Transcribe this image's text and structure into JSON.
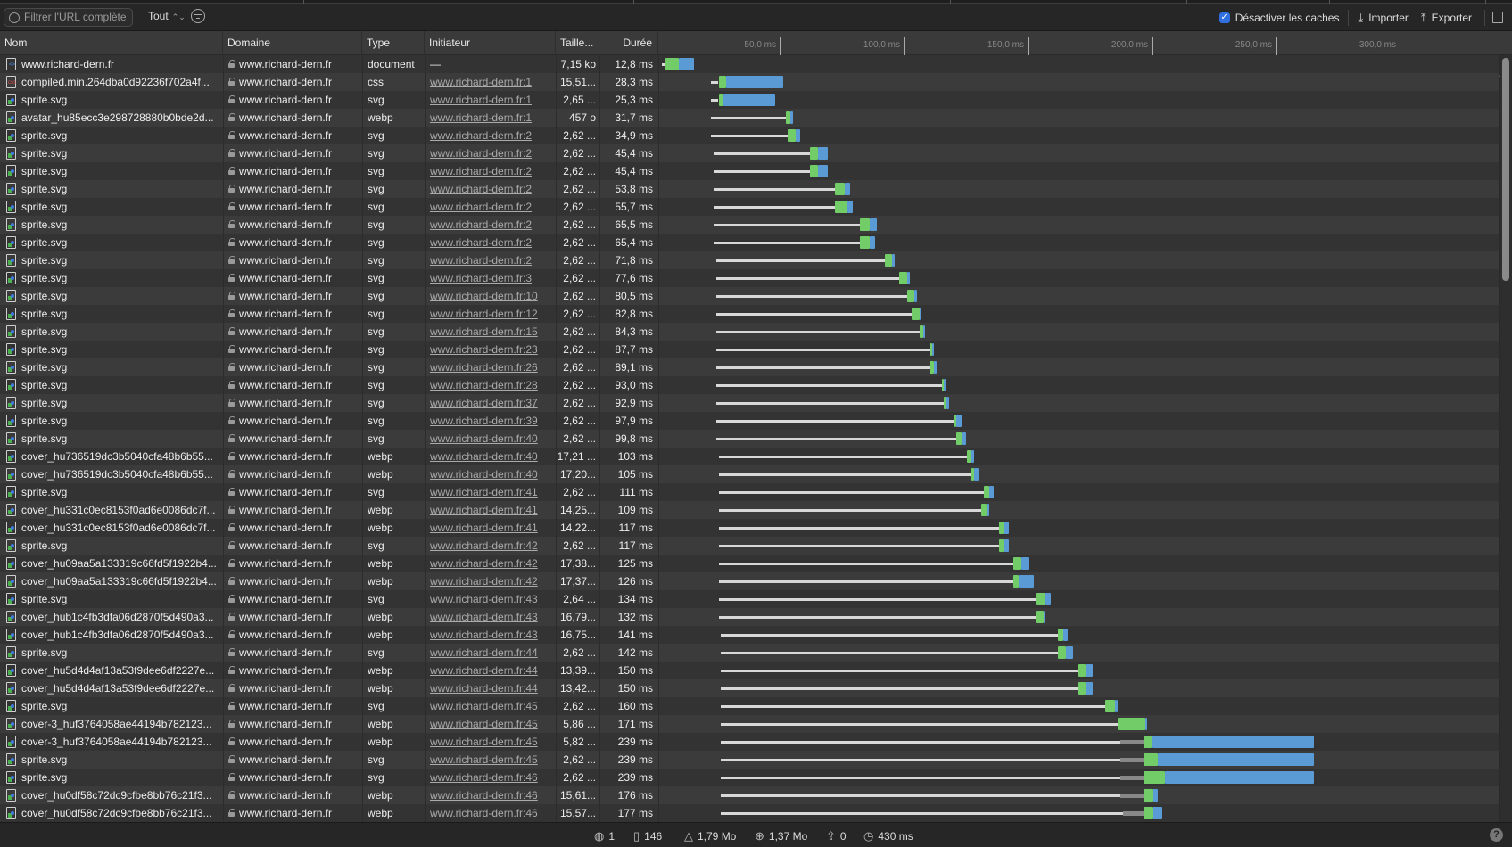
{
  "toolbar": {
    "filter_placeholder": "Filtrer l'URL complète",
    "type_filter": "Tout",
    "disable_cache_label": "Désactiver les caches",
    "disable_cache_checked": true,
    "import_label": "Importer",
    "export_label": "Exporter"
  },
  "columns": {
    "name": "Nom",
    "domain": "Domaine",
    "type": "Type",
    "initiator": "Initiateur",
    "size": "Taille...",
    "duration": "Durée"
  },
  "timeline": {
    "ticks": [
      "50,0 ms",
      "100,0 ms",
      "150,0 ms",
      "200,0 ms",
      "250,0 ms",
      "300,0 ms"
    ],
    "tick_values_ms": [
      50,
      100,
      150,
      200,
      250,
      300
    ],
    "colors": {
      "waiting": "#d8d8d8",
      "stalled": "#888888",
      "request": "#72cc68",
      "response": "#5a9bd6"
    }
  },
  "rows": [
    {
      "name": "www.richard-dern.fr",
      "icon": "document",
      "domain": "www.richard-dern.fr",
      "type": "document",
      "initiator": "—",
      "size": "7,15 ko",
      "duration": "12,8 ms",
      "timing": [
        2,
        null,
        3.5,
        9,
        15
      ]
    },
    {
      "name": "compiled.min.264dba0d92236f702a4f...",
      "icon": "css",
      "domain": "www.richard-dern.fr",
      "type": "css",
      "initiator": "www.richard-dern.fr:1",
      "size": "15,51...",
      "duration": "28,3 ms",
      "timing": [
        22,
        null,
        25,
        28,
        51
      ]
    },
    {
      "name": "sprite.svg",
      "icon": "image",
      "domain": "www.richard-dern.fr",
      "type": "svg",
      "initiator": "www.richard-dern.fr:1",
      "size": "2,65 ...",
      "duration": "25,3 ms",
      "timing": [
        22,
        null,
        25,
        27,
        48
      ]
    },
    {
      "name": "avatar_hu85ecc3e298728880b0bde2d...",
      "icon": "image",
      "domain": "www.richard-dern.fr",
      "type": "webp",
      "initiator": "www.richard-dern.fr:1",
      "size": "457 o",
      "duration": "31,7 ms",
      "timing": [
        22,
        null,
        52,
        54,
        55
      ]
    },
    {
      "name": "sprite.svg",
      "icon": "image",
      "domain": "www.richard-dern.fr",
      "type": "svg",
      "initiator": "www.richard-dern.fr:2",
      "size": "2,62 ...",
      "duration": "34,9 ms",
      "timing": [
        22,
        null,
        53,
        56,
        58
      ]
    },
    {
      "name": "sprite.svg",
      "icon": "image",
      "domain": "www.richard-dern.fr",
      "type": "svg",
      "initiator": "www.richard-dern.fr:2",
      "size": "2,62 ...",
      "duration": "45,4 ms",
      "timing": [
        23,
        null,
        62,
        65,
        69
      ]
    },
    {
      "name": "sprite.svg",
      "icon": "image",
      "domain": "www.richard-dern.fr",
      "type": "svg",
      "initiator": "www.richard-dern.fr:2",
      "size": "2,62 ...",
      "duration": "45,4 ms",
      "timing": [
        23,
        null,
        62,
        65,
        69
      ]
    },
    {
      "name": "sprite.svg",
      "icon": "image",
      "domain": "www.richard-dern.fr",
      "type": "svg",
      "initiator": "www.richard-dern.fr:2",
      "size": "2,62 ...",
      "duration": "53,8 ms",
      "timing": [
        23,
        null,
        72,
        76,
        78
      ]
    },
    {
      "name": "sprite.svg",
      "icon": "image",
      "domain": "www.richard-dern.fr",
      "type": "svg",
      "initiator": "www.richard-dern.fr:2",
      "size": "2,62 ...",
      "duration": "55,7 ms",
      "timing": [
        23,
        null,
        72,
        77,
        79
      ]
    },
    {
      "name": "sprite.svg",
      "icon": "image",
      "domain": "www.richard-dern.fr",
      "type": "svg",
      "initiator": "www.richard-dern.fr:2",
      "size": "2,62 ...",
      "duration": "65,5 ms",
      "timing": [
        23,
        null,
        82,
        86,
        89
      ]
    },
    {
      "name": "sprite.svg",
      "icon": "image",
      "domain": "www.richard-dern.fr",
      "type": "svg",
      "initiator": "www.richard-dern.fr:2",
      "size": "2,62 ...",
      "duration": "65,4 ms",
      "timing": [
        23,
        null,
        82,
        86,
        88
      ]
    },
    {
      "name": "sprite.svg",
      "icon": "image",
      "domain": "www.richard-dern.fr",
      "type": "svg",
      "initiator": "www.richard-dern.fr:2",
      "size": "2,62 ...",
      "duration": "71,8 ms",
      "timing": [
        24,
        null,
        92,
        95,
        96
      ]
    },
    {
      "name": "sprite.svg",
      "icon": "image",
      "domain": "www.richard-dern.fr",
      "type": "svg",
      "initiator": "www.richard-dern.fr:3",
      "size": "2,62 ...",
      "duration": "77,6 ms",
      "timing": [
        24,
        null,
        98,
        101,
        102
      ]
    },
    {
      "name": "sprite.svg",
      "icon": "image",
      "domain": "www.richard-dern.fr",
      "type": "svg",
      "initiator": "www.richard-dern.fr:10",
      "size": "2,62 ...",
      "duration": "80,5 ms",
      "timing": [
        24,
        null,
        101,
        104,
        105
      ]
    },
    {
      "name": "sprite.svg",
      "icon": "image",
      "domain": "www.richard-dern.fr",
      "type": "svg",
      "initiator": "www.richard-dern.fr:12",
      "size": "2,62 ...",
      "duration": "82,8 ms",
      "timing": [
        24,
        null,
        103,
        106,
        107
      ]
    },
    {
      "name": "sprite.svg",
      "icon": "image",
      "domain": "www.richard-dern.fr",
      "type": "svg",
      "initiator": "www.richard-dern.fr:15",
      "size": "2,62 ...",
      "duration": "84,3 ms",
      "timing": [
        24,
        null,
        106,
        107.5,
        108
      ]
    },
    {
      "name": "sprite.svg",
      "icon": "image",
      "domain": "www.richard-dern.fr",
      "type": "svg",
      "initiator": "www.richard-dern.fr:23",
      "size": "2,62 ...",
      "duration": "87,7 ms",
      "timing": [
        24,
        null,
        110,
        111,
        112
      ]
    },
    {
      "name": "sprite.svg",
      "icon": "image",
      "domain": "www.richard-dern.fr",
      "type": "svg",
      "initiator": "www.richard-dern.fr:26",
      "size": "2,62 ...",
      "duration": "89,1 ms",
      "timing": [
        24,
        null,
        110,
        112,
        113
      ]
    },
    {
      "name": "sprite.svg",
      "icon": "image",
      "domain": "www.richard-dern.fr",
      "type": "svg",
      "initiator": "www.richard-dern.fr:28",
      "size": "2,62 ...",
      "duration": "93,0 ms",
      "timing": [
        24,
        null,
        115,
        116,
        117
      ]
    },
    {
      "name": "sprite.svg",
      "icon": "image",
      "domain": "www.richard-dern.fr",
      "type": "svg",
      "initiator": "www.richard-dern.fr:37",
      "size": "2,62 ...",
      "duration": "92,9 ms",
      "timing": [
        24,
        null,
        116,
        117,
        118
      ]
    },
    {
      "name": "sprite.svg",
      "icon": "image",
      "domain": "www.richard-dern.fr",
      "type": "svg",
      "initiator": "www.richard-dern.fr:39",
      "size": "2,62 ...",
      "duration": "97,9 ms",
      "timing": [
        24,
        null,
        120,
        121,
        123
      ]
    },
    {
      "name": "sprite.svg",
      "icon": "image",
      "domain": "www.richard-dern.fr",
      "type": "svg",
      "initiator": "www.richard-dern.fr:40",
      "size": "2,62 ...",
      "duration": "99,8 ms",
      "timing": [
        24,
        null,
        121,
        123,
        125
      ]
    },
    {
      "name": "cover_hu736519dc3b5040cfa48b6b55...",
      "icon": "image",
      "domain": "www.richard-dern.fr",
      "type": "webp",
      "initiator": "www.richard-dern.fr:40",
      "size": "17,21 ...",
      "duration": "103 ms",
      "timing": [
        25,
        null,
        125,
        127,
        128
      ]
    },
    {
      "name": "cover_hu736519dc3b5040cfa48b6b55...",
      "icon": "image",
      "domain": "www.richard-dern.fr",
      "type": "webp",
      "initiator": "www.richard-dern.fr:40",
      "size": "17,20...",
      "duration": "105 ms",
      "timing": [
        25,
        null,
        127,
        128,
        130
      ]
    },
    {
      "name": "sprite.svg",
      "icon": "image",
      "domain": "www.richard-dern.fr",
      "type": "svg",
      "initiator": "www.richard-dern.fr:41",
      "size": "2,62 ...",
      "duration": "111 ms",
      "timing": [
        25,
        null,
        132,
        134,
        136
      ]
    },
    {
      "name": "cover_hu331c0ec8153f0ad6e0086dc7f...",
      "icon": "image",
      "domain": "www.richard-dern.fr",
      "type": "webp",
      "initiator": "www.richard-dern.fr:41",
      "size": "14,25...",
      "duration": "109 ms",
      "timing": [
        25,
        null,
        131,
        133,
        134
      ]
    },
    {
      "name": "cover_hu331c0ec8153f0ad6e0086dc7f...",
      "icon": "image",
      "domain": "www.richard-dern.fr",
      "type": "webp",
      "initiator": "www.richard-dern.fr:41",
      "size": "14,22...",
      "duration": "117 ms",
      "timing": [
        25,
        null,
        138,
        140,
        142
      ]
    },
    {
      "name": "sprite.svg",
      "icon": "image",
      "domain": "www.richard-dern.fr",
      "type": "svg",
      "initiator": "www.richard-dern.fr:42",
      "size": "2,62 ...",
      "duration": "117 ms",
      "timing": [
        25,
        null,
        138,
        140,
        142
      ]
    },
    {
      "name": "cover_hu09aa5a133319c66fd5f1922b4...",
      "icon": "image",
      "domain": "www.richard-dern.fr",
      "type": "webp",
      "initiator": "www.richard-dern.fr:42",
      "size": "17,38...",
      "duration": "125 ms",
      "timing": [
        25,
        null,
        144,
        147,
        150
      ]
    },
    {
      "name": "cover_hu09aa5a133319c66fd5f1922b4...",
      "icon": "image",
      "domain": "www.richard-dern.fr",
      "type": "webp",
      "initiator": "www.richard-dern.fr:42",
      "size": "17,37...",
      "duration": "126 ms",
      "timing": [
        25,
        null,
        144,
        146,
        152
      ]
    },
    {
      "name": "sprite.svg",
      "icon": "image",
      "domain": "www.richard-dern.fr",
      "type": "svg",
      "initiator": "www.richard-dern.fr:43",
      "size": "2,64 ...",
      "duration": "134 ms",
      "timing": [
        25,
        null,
        153,
        157,
        159
      ]
    },
    {
      "name": "cover_hub1c4fb3dfa06d2870f5d490a3...",
      "icon": "image",
      "domain": "www.richard-dern.fr",
      "type": "webp",
      "initiator": "www.richard-dern.fr:43",
      "size": "16,79...",
      "duration": "132 ms",
      "timing": [
        25,
        null,
        153,
        156,
        157
      ]
    },
    {
      "name": "cover_hub1c4fb3dfa06d2870f5d490a3...",
      "icon": "image",
      "domain": "www.richard-dern.fr",
      "type": "webp",
      "initiator": "www.richard-dern.fr:43",
      "size": "16,75...",
      "duration": "141 ms",
      "timing": [
        26,
        null,
        162,
        164,
        166
      ]
    },
    {
      "name": "sprite.svg",
      "icon": "image",
      "domain": "www.richard-dern.fr",
      "type": "svg",
      "initiator": "www.richard-dern.fr:44",
      "size": "2,62 ...",
      "duration": "142 ms",
      "timing": [
        26,
        null,
        162,
        165,
        168
      ]
    },
    {
      "name": "cover_hu5d4d4af13a53f9dee6df2227e...",
      "icon": "image",
      "domain": "www.richard-dern.fr",
      "type": "webp",
      "initiator": "www.richard-dern.fr:44",
      "size": "13,39...",
      "duration": "150 ms",
      "timing": [
        26,
        null,
        170,
        173,
        176
      ]
    },
    {
      "name": "cover_hu5d4d4af13a53f9dee6df2227e...",
      "icon": "image",
      "domain": "www.richard-dern.fr",
      "type": "webp",
      "initiator": "www.richard-dern.fr:44",
      "size": "13,42...",
      "duration": "150 ms",
      "timing": [
        26,
        null,
        170,
        173,
        176
      ]
    },
    {
      "name": "sprite.svg",
      "icon": "image",
      "domain": "www.richard-dern.fr",
      "type": "svg",
      "initiator": "www.richard-dern.fr:45",
      "size": "2,62 ...",
      "duration": "160 ms",
      "timing": [
        26,
        null,
        181,
        185,
        186
      ]
    },
    {
      "name": "cover-3_huf3764058ae44194b782123...",
      "icon": "image",
      "domain": "www.richard-dern.fr",
      "type": "webp",
      "initiator": "www.richard-dern.fr:45",
      "size": "5,86 ...",
      "duration": "171 ms",
      "timing": [
        26,
        null,
        186,
        197,
        197.5
      ]
    },
    {
      "name": "cover-3_huf3764058ae44194b782123...",
      "icon": "image",
      "domain": "www.richard-dern.fr",
      "type": "webp",
      "initiator": "www.richard-dern.fr:45",
      "size": "5,82 ...",
      "duration": "239 ms",
      "timing": [
        26,
        187,
        196.5,
        199.5,
        265
      ]
    },
    {
      "name": "sprite.svg",
      "icon": "image",
      "domain": "www.richard-dern.fr",
      "type": "svg",
      "initiator": "www.richard-dern.fr:45",
      "size": "2,62 ...",
      "duration": "239 ms",
      "timing": [
        26,
        187,
        196.5,
        202,
        265
      ]
    },
    {
      "name": "sprite.svg",
      "icon": "image",
      "domain": "www.richard-dern.fr",
      "type": "svg",
      "initiator": "www.richard-dern.fr:46",
      "size": "2,62 ...",
      "duration": "239 ms",
      "timing": [
        26,
        187,
        196.5,
        205,
        265
      ]
    },
    {
      "name": "cover_hu0df58c72dc9cfbe8bb76c21f3...",
      "icon": "image",
      "domain": "www.richard-dern.fr",
      "type": "webp",
      "initiator": "www.richard-dern.fr:46",
      "size": "15,61...",
      "duration": "176 ms",
      "timing": [
        26,
        187,
        196.5,
        200,
        202
      ]
    },
    {
      "name": "cover_hu0df58c72dc9cfbe8bb76c21f3...",
      "icon": "image",
      "domain": "www.richard-dern.fr",
      "type": "webp",
      "initiator": "www.richard-dern.fr:46",
      "size": "15,57...",
      "duration": "177 ms",
      "timing": [
        26,
        188,
        196.5,
        200,
        204
      ]
    }
  ],
  "status": {
    "domains": "1",
    "requests": "146",
    "transferred": "1,79 Mo",
    "resources": "1,37 Mo",
    "errors": "0",
    "time": "430 ms",
    "help": "?"
  }
}
